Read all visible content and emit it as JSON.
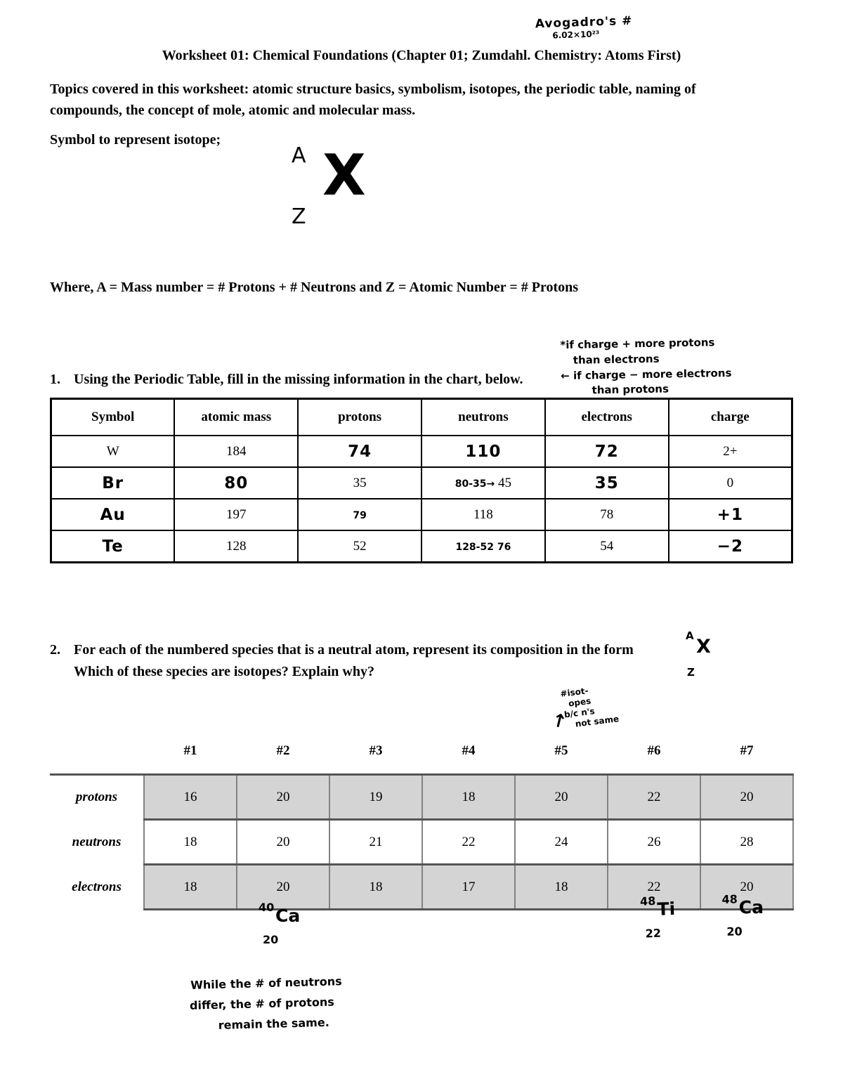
{
  "header": {
    "title": "Worksheet 01: Chemical Foundations (Chapter 01; Zumdahl. Chemistry: Atoms First)"
  },
  "intro": {
    "topics": "Topics covered in this worksheet:  atomic structure basics, symbolism, isotopes, the periodic table, naming of compounds, the concept of mole, atomic and molecular mass.",
    "symbol_caption": "Symbol to represent isotope;"
  },
  "isotope_symbol": {
    "mass": "A",
    "element": "X",
    "number": "Z"
  },
  "where_line": "Where, A = Mass number = # Protons + # Neutrons  and Z = Atomic Number = # Protons",
  "q1": {
    "number": "1.",
    "text": "Using the Periodic Table, fill in the missing information in the chart, below."
  },
  "table1": {
    "headers": [
      "Symbol",
      "atomic mass",
      "protons",
      "neutrons",
      "electrons",
      "charge"
    ],
    "rows": [
      [
        {
          "t": "W"
        },
        {
          "t": "184"
        },
        {
          "t": "74",
          "hw": true
        },
        {
          "t": "110",
          "hw": true
        },
        {
          "t": "72",
          "hw": true
        },
        {
          "t": "2+"
        }
      ],
      [
        {
          "t": "Br",
          "hw": true
        },
        {
          "t": "80",
          "hw": true
        },
        {
          "t": "35"
        },
        {
          "parts": [
            {
              "t": "80-35",
              "hw": true,
              "sm": true
            },
            {
              "t": "→",
              "hw": true,
              "sm": true
            },
            {
              "t": " 45"
            }
          ]
        },
        {
          "t": "35",
          "hw": true
        },
        {
          "t": "0"
        }
      ],
      [
        {
          "t": "Au",
          "hw": true
        },
        {
          "t": "197"
        },
        {
          "t": "79",
          "hw": true,
          "sm": true
        },
        {
          "t": "118"
        },
        {
          "t": "78"
        },
        {
          "t": "+1",
          "hw": true
        }
      ],
      [
        {
          "t": "Te",
          "hw": true
        },
        {
          "t": "128"
        },
        {
          "t": "52"
        },
        {
          "parts": [
            {
              "t": "128-52",
              "hw": true,
              "sm": true
            },
            {
              "t": " 76",
              "hw": true,
              "sm": true
            }
          ]
        },
        {
          "t": "54"
        },
        {
          "t": "−2",
          "hw": true
        }
      ]
    ]
  },
  "q2": {
    "number": "2.",
    "line1": "For each of the numbered species that is a neutral atom, represent its composition in the form",
    "line2": "Which of these species are isotopes?  Explain why?"
  },
  "table2": {
    "col_headers": [
      "#1",
      "#2",
      "#3",
      "#4",
      "#5",
      "#6",
      "#7"
    ],
    "rows": [
      {
        "label": "protons",
        "shaded": true,
        "values": [
          "16",
          "20",
          "19",
          "18",
          "20",
          "22",
          "20"
        ]
      },
      {
        "label": "neutrons",
        "shaded": false,
        "values": [
          "18",
          "20",
          "21",
          "22",
          "24",
          "26",
          "28"
        ]
      },
      {
        "label": "electrons",
        "shaded": true,
        "values": [
          "18",
          "20",
          "18",
          "17",
          "18",
          "22",
          "20"
        ]
      }
    ]
  },
  "annotations": {
    "avogadro": {
      "line1": "Avogadro's #",
      "line2": "6.02×10²³"
    },
    "charge_note": {
      "line1": "*if charge + more protons",
      "line2": "than electrons",
      "line3": "← if charge − more electrons",
      "line4": "than protons"
    },
    "isotope_note": {
      "line1": "#isot-",
      "line2": "opes",
      "line3": "b/c n's",
      "line4": "not same",
      "arrow": "↑"
    },
    "iso_labels": [
      {
        "mass": "40",
        "symbol": "Ca",
        "number": "20"
      },
      {
        "mass": "48",
        "symbol": "Ti",
        "number": "22"
      },
      {
        "mass": "48",
        "symbol": "Ca",
        "number": "20"
      }
    ],
    "bottom_note": {
      "line1": "While the # of neutrons",
      "line2": "differ, the # of protons",
      "line3": "remain the same."
    }
  }
}
